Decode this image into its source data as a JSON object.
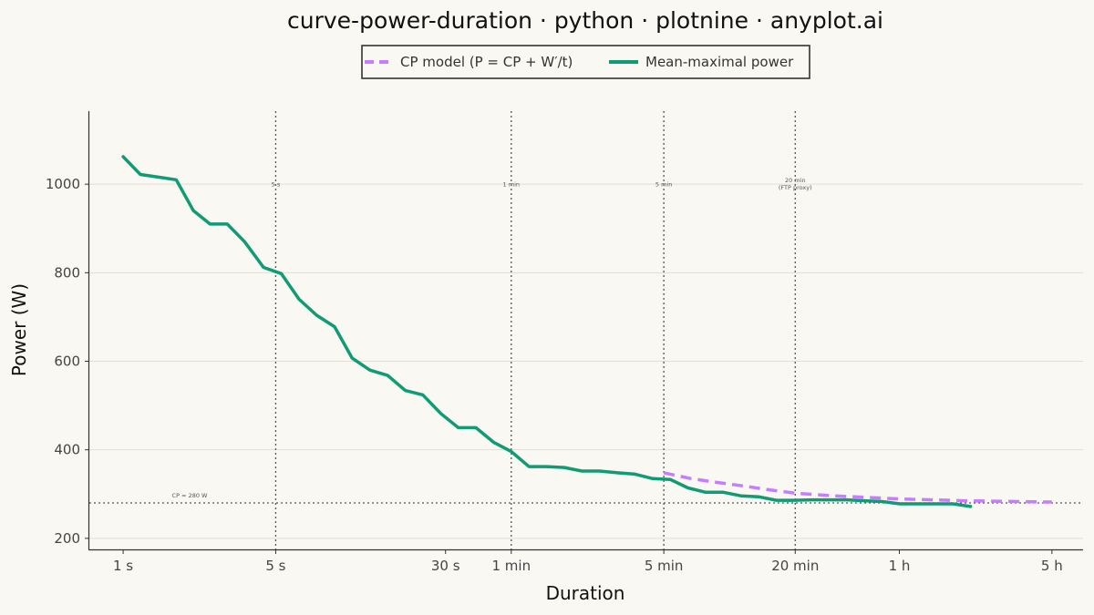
{
  "chart_data": {
    "type": "line",
    "title": "curve-power-duration · python · plotnine · anyplot.ai",
    "xlabel": "Duration",
    "ylabel": "Power (W)",
    "x_scale": "log",
    "x_unit": "seconds",
    "xlim": [
      0.7,
      25000
    ],
    "ylim": [
      175,
      1165
    ],
    "x_ticks": [
      {
        "value": 1,
        "label": "1 s"
      },
      {
        "value": 5,
        "label": "5 s"
      },
      {
        "value": 30,
        "label": "30 s"
      },
      {
        "value": 60,
        "label": "1 min"
      },
      {
        "value": 300,
        "label": "5 min"
      },
      {
        "value": 1200,
        "label": "20 min"
      },
      {
        "value": 3600,
        "label": "1 h"
      },
      {
        "value": 18000,
        "label": "5 h"
      }
    ],
    "y_ticks": [
      200,
      400,
      600,
      800,
      1000
    ],
    "grid": {
      "x": false,
      "y": true
    },
    "legend": {
      "placement": "top",
      "entries": [
        "CP model  (P = CP + W′/t)",
        "Mean-maximal power"
      ]
    },
    "colors": {
      "model": "#c77dff",
      "mmp": "#0f9b73"
    },
    "reference_lines": [
      {
        "orientation": "vertical",
        "x": 5,
        "label": "5 s"
      },
      {
        "orientation": "vertical",
        "x": 60,
        "label": "1 min"
      },
      {
        "orientation": "vertical",
        "x": 300,
        "label": "5 min"
      },
      {
        "orientation": "vertical",
        "x": 1200,
        "label": "20 min",
        "label2": "(FTP proxy)"
      },
      {
        "orientation": "horizontal",
        "y": 280,
        "label": "CP = 280 W"
      }
    ],
    "series": [
      {
        "name": "CP model  (P = CP + W′/t)",
        "style": "dashed",
        "points": [
          [
            300,
            348
          ],
          [
            400,
            335
          ],
          [
            500,
            328
          ],
          [
            700,
            318
          ],
          [
            900,
            310
          ],
          [
            1200,
            302
          ],
          [
            1800,
            296
          ],
          [
            3600,
            289
          ],
          [
            7200,
            285
          ],
          [
            18000,
            282
          ]
        ]
      },
      {
        "name": "Mean-maximal power",
        "style": "solid",
        "points": [
          [
            1,
            1062
          ],
          [
            1.2,
            1022
          ],
          [
            1.45,
            1016
          ],
          [
            1.75,
            1010
          ],
          [
            2.1,
            940
          ],
          [
            2.5,
            910
          ],
          [
            3,
            910
          ],
          [
            3.6,
            870
          ],
          [
            4.4,
            812
          ],
          [
            5.3,
            798
          ],
          [
            6.4,
            740
          ],
          [
            7.7,
            704
          ],
          [
            9.3,
            678
          ],
          [
            11.2,
            607
          ],
          [
            13.5,
            580
          ],
          [
            16.3,
            568
          ],
          [
            19.6,
            534
          ],
          [
            23.6,
            524
          ],
          [
            28.5,
            482
          ],
          [
            34.3,
            450
          ],
          [
            41.3,
            450
          ],
          [
            49.8,
            417
          ],
          [
            60,
            396
          ],
          [
            72.3,
            362
          ],
          [
            87.1,
            362
          ],
          [
            105,
            360
          ],
          [
            126.5,
            352
          ],
          [
            152.4,
            352
          ],
          [
            183.6,
            348
          ],
          [
            221.3,
            345
          ],
          [
            266.6,
            335
          ],
          [
            321.2,
            333
          ],
          [
            387,
            314
          ],
          [
            466.3,
            304
          ],
          [
            561.8,
            304
          ],
          [
            676.9,
            296
          ],
          [
            815.6,
            294
          ],
          [
            982.6,
            286
          ],
          [
            1184,
            286
          ],
          [
            1427,
            287
          ],
          [
            1719,
            287
          ],
          [
            2071,
            287
          ],
          [
            2495,
            285
          ],
          [
            3006,
            283
          ],
          [
            3622,
            278
          ],
          [
            4364,
            278
          ],
          [
            5258,
            278
          ],
          [
            6335,
            278
          ],
          [
            7633,
            272
          ]
        ]
      }
    ]
  }
}
